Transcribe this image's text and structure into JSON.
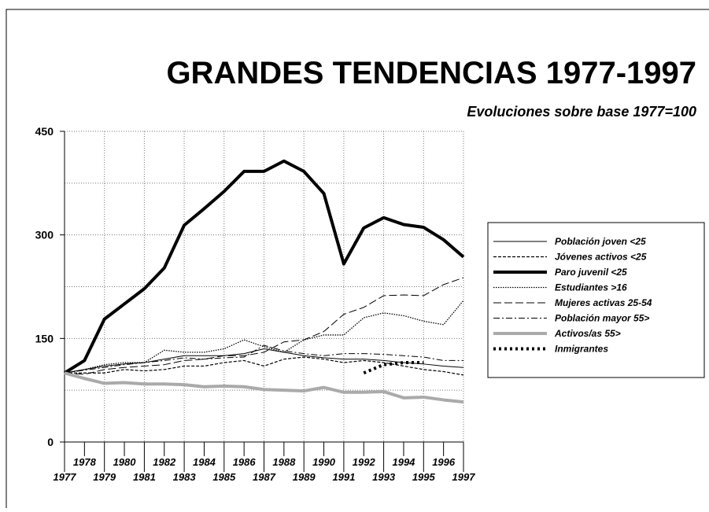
{
  "chart_data": {
    "type": "line",
    "title": "GRANDES TENDENCIAS 1977-1997",
    "subtitle": "Evoluciones sobre base 1977=100",
    "x": [
      1977,
      1978,
      1979,
      1980,
      1981,
      1982,
      1983,
      1984,
      1985,
      1986,
      1987,
      1988,
      1989,
      1990,
      1991,
      1992,
      1993,
      1994,
      1995,
      1996,
      1997
    ],
    "xlim": [
      1977,
      1997
    ],
    "ylim": [
      0,
      450
    ],
    "yticks": [
      0,
      150,
      300,
      450
    ],
    "y_minor_grid": [
      75,
      225,
      375
    ],
    "grid": true,
    "legend": "right",
    "series": [
      {
        "name": "Población joven <25",
        "color": "#000000",
        "width": 1,
        "dash": "",
        "values": [
          100,
          105,
          110,
          113,
          115,
          120,
          125,
          125,
          125,
          128,
          135,
          130,
          125,
          122,
          120,
          120,
          118,
          115,
          113,
          110,
          108
        ]
      },
      {
        "name": "Jóvenes activos <25",
        "color": "#000000",
        "width": 1.2,
        "dash": "4,2",
        "values": [
          100,
          100,
          100,
          105,
          103,
          105,
          110,
          110,
          115,
          118,
          110,
          120,
          123,
          120,
          115,
          118,
          115,
          110,
          105,
          102,
          97
        ]
      },
      {
        "name": "Paro juvenil <25",
        "color": "#000000",
        "width": 4,
        "dash": "",
        "values": [
          100,
          118,
          178,
          200,
          222,
          252,
          314,
          338,
          363,
          392,
          392,
          407,
          392,
          360,
          258,
          310,
          325,
          315,
          311,
          293,
          268
        ]
      },
      {
        "name": "Estudiantes >16",
        "color": "#000000",
        "width": 1.3,
        "dash": "1.5,1.5",
        "values": [
          100,
          105,
          112,
          115,
          115,
          133,
          130,
          130,
          135,
          148,
          138,
          130,
          148,
          155,
          155,
          180,
          187,
          183,
          175,
          170,
          205
        ]
      },
      {
        "name": "Mujeres activas 25-54",
        "color": "#000000",
        "width": 1,
        "dash": "10,4",
        "values": [
          100,
          98,
          105,
          108,
          110,
          112,
          118,
          120,
          125,
          125,
          130,
          145,
          148,
          160,
          185,
          195,
          212,
          213,
          212,
          228,
          238
        ]
      },
      {
        "name": "Población mayor 55>",
        "color": "#000000",
        "width": 1,
        "dash": "8,3,2,3",
        "values": [
          100,
          104,
          108,
          112,
          115,
          118,
          122,
          120,
          122,
          123,
          140,
          132,
          128,
          125,
          128,
          128,
          127,
          125,
          123,
          118,
          118
        ]
      },
      {
        "name": "Activos/as 55>",
        "color": "#aaaaaa",
        "width": 4,
        "dash": "",
        "values": [
          100,
          92,
          85,
          86,
          84,
          84,
          83,
          80,
          81,
          80,
          76,
          75,
          74,
          79,
          72,
          72,
          73,
          64,
          65,
          61,
          58
        ]
      },
      {
        "name": "Inmigrantes",
        "color": "#000000",
        "width": 4,
        "dash": "3,4",
        "values": [
          null,
          null,
          null,
          null,
          null,
          null,
          null,
          null,
          null,
          null,
          null,
          null,
          null,
          null,
          null,
          100,
          112,
          115,
          115,
          null,
          null
        ]
      }
    ]
  }
}
